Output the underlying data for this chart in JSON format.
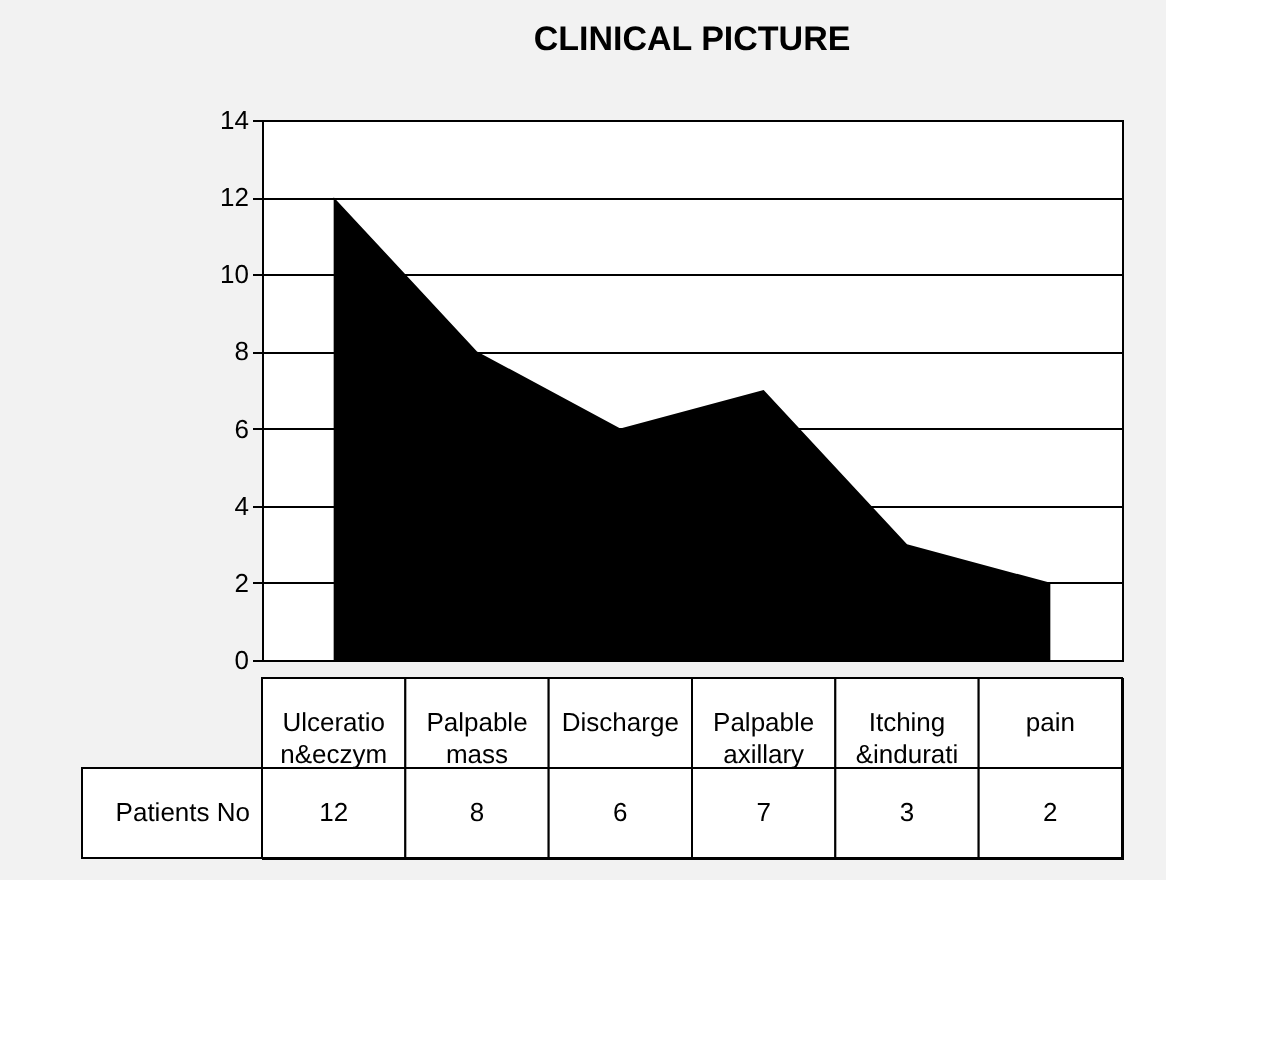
{
  "chart_data": {
    "type": "area",
    "title": "CLINICAL PICTURE",
    "categories": [
      "Ulceration&eczym",
      "Palpable mass",
      "Discharge",
      "Palpable axillary",
      "Itching &indurati",
      "pain"
    ],
    "series": [
      {
        "name": "Patients No",
        "color": "#000000",
        "values": [
          12,
          8,
          6,
          7,
          3,
          2
        ]
      }
    ],
    "ylim": [
      0,
      14
    ],
    "yticks": [
      0,
      2,
      4,
      6,
      8,
      10,
      12,
      14
    ],
    "grid": "y",
    "data_labels": true
  }
}
